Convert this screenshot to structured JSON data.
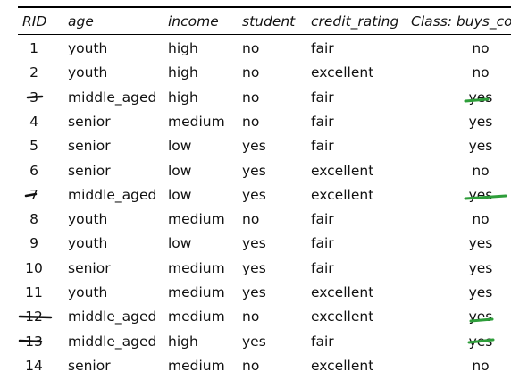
{
  "table": {
    "header": [
      "RID",
      "age",
      "income",
      "student",
      "credit_rating",
      "Class: buys_com"
    ],
    "rows": [
      [
        "1",
        "youth",
        "high",
        "no",
        "fair",
        "no"
      ],
      [
        "2",
        "youth",
        "high",
        "no",
        "excellent",
        "no"
      ],
      [
        "3",
        "middle_aged",
        "high",
        "no",
        "fair",
        "yes"
      ],
      [
        "4",
        "senior",
        "medium",
        "no",
        "fair",
        "yes"
      ],
      [
        "5",
        "senior",
        "low",
        "yes",
        "fair",
        "yes"
      ],
      [
        "6",
        "senior",
        "low",
        "yes",
        "excellent",
        "no"
      ],
      [
        "7",
        "middle_aged",
        "low",
        "yes",
        "excellent",
        "yes"
      ],
      [
        "8",
        "youth",
        "medium",
        "no",
        "fair",
        "no"
      ],
      [
        "9",
        "youth",
        "low",
        "yes",
        "fair",
        "yes"
      ],
      [
        "10",
        "senior",
        "medium",
        "yes",
        "fair",
        "yes"
      ],
      [
        "11",
        "youth",
        "medium",
        "yes",
        "excellent",
        "yes"
      ],
      [
        "12",
        "middle_aged",
        "medium",
        "no",
        "excellent",
        "yes"
      ],
      [
        "13",
        "middle_aged",
        "high",
        "yes",
        "fair",
        "yes"
      ],
      [
        "14",
        "senior",
        "medium",
        "no",
        "excellent",
        "no"
      ]
    ]
  }
}
